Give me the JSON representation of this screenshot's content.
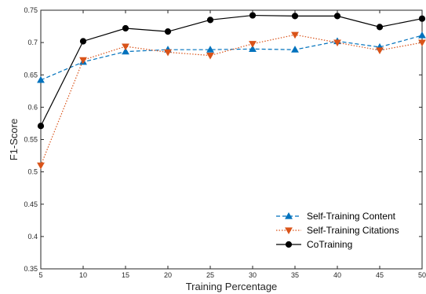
{
  "chart_data": {
    "type": "line",
    "title": "",
    "xlabel": "Training Percentage",
    "ylabel": "F1-Score",
    "x": [
      5,
      10,
      15,
      20,
      25,
      30,
      35,
      40,
      45,
      50
    ],
    "xlim": [
      5,
      50
    ],
    "ylim": [
      0.35,
      0.75
    ],
    "xticks": [
      5,
      10,
      15,
      20,
      25,
      30,
      35,
      40,
      45,
      50
    ],
    "yticks": [
      0.35,
      0.4,
      0.45,
      0.5,
      0.55,
      0.6,
      0.65,
      0.7,
      0.75
    ],
    "grid": false,
    "legend_position": "bottom-right",
    "series": [
      {
        "name": "Self-Training Content",
        "color": "#0072BD",
        "line_style": "dashed",
        "marker": "triangle-up",
        "values": [
          0.642,
          0.67,
          0.686,
          0.689,
          0.689,
          0.69,
          0.689,
          0.702,
          0.693,
          0.711
        ]
      },
      {
        "name": "Self-Training Citations",
        "color": "#D95319",
        "line_style": "dotted",
        "marker": "triangle-down",
        "values": [
          0.51,
          0.673,
          0.694,
          0.685,
          0.68,
          0.698,
          0.712,
          0.7,
          0.688,
          0.7
        ]
      },
      {
        "name": "CoTraining",
        "color": "#000000",
        "line_style": "solid",
        "marker": "circle",
        "values": [
          0.571,
          0.702,
          0.722,
          0.717,
          0.735,
          0.742,
          0.741,
          0.741,
          0.724,
          0.737
        ]
      }
    ]
  }
}
